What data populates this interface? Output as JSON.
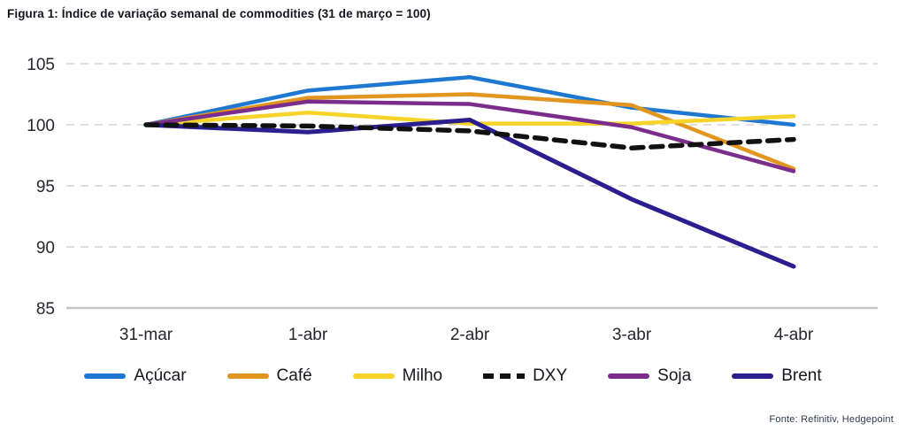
{
  "page": {
    "title": "Figura 1: Índice de variação semanal de commodities (31 de março = 100)",
    "source": "Fonte: Refinitiv, Hedgepoint"
  },
  "chart_data": {
    "type": "line",
    "title": "Figura 1: Índice de variação semanal de commodities (31 de março = 100)",
    "categories": [
      "31-mar",
      "1-abr",
      "2-abr",
      "3-abr",
      "4-abr"
    ],
    "series": [
      {
        "name": "Açúcar",
        "color": "#1e78d2",
        "dashed": false,
        "values": [
          100,
          102.8,
          103.9,
          101.4,
          100.0
        ]
      },
      {
        "name": "Café",
        "color": "#e2961f",
        "dashed": false,
        "values": [
          100,
          102.2,
          102.5,
          101.6,
          96.4
        ]
      },
      {
        "name": "Milho",
        "color": "#f6d42a",
        "dashed": false,
        "values": [
          100,
          101.0,
          100.1,
          100.1,
          100.7
        ]
      },
      {
        "name": "DXY",
        "color": "#111111",
        "dashed": true,
        "values": [
          100,
          99.9,
          99.5,
          98.1,
          98.8
        ]
      },
      {
        "name": "Soja",
        "color": "#7b2d8b",
        "dashed": false,
        "values": [
          100,
          101.9,
          101.7,
          99.8,
          96.2
        ]
      },
      {
        "name": "Brent",
        "color": "#2b1e8e",
        "dashed": false,
        "values": [
          100,
          99.4,
          100.4,
          93.9,
          88.4
        ]
      }
    ],
    "draw_order": [
      "Açúcar",
      "Café",
      "Milho",
      "Soja",
      "Brent",
      "DXY"
    ],
    "xlabel": "",
    "ylabel": "",
    "ylim": [
      85,
      105
    ],
    "yticks": [
      105,
      100,
      95,
      90,
      85
    ],
    "grid": true,
    "legend_position": "bottom",
    "source": "Fonte: Refinitiv, Hedgepoint"
  }
}
